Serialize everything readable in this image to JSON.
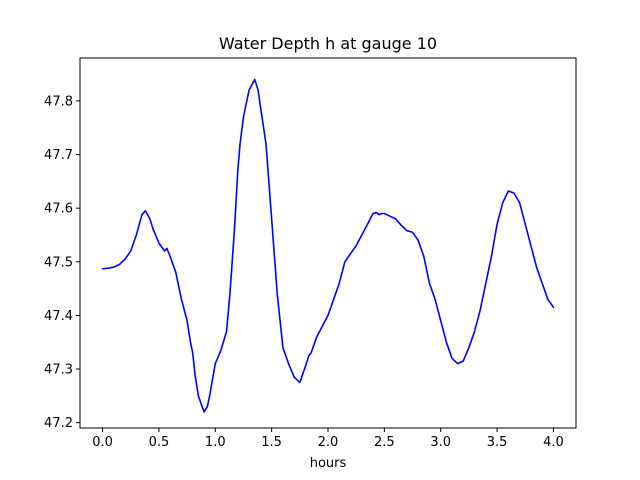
{
  "chart_data": {
    "type": "line",
    "title": "Water Depth h at gauge 10",
    "xlabel": "hours",
    "ylabel": "",
    "xlim": [
      -0.2,
      4.2
    ],
    "ylim": [
      47.19,
      47.88
    ],
    "xticks": [
      0.0,
      0.5,
      1.0,
      1.5,
      2.0,
      2.5,
      3.0,
      3.5,
      4.0
    ],
    "xtick_labels": [
      "0.0",
      "0.5",
      "1.0",
      "1.5",
      "2.0",
      "2.5",
      "3.0",
      "3.5",
      "4.0"
    ],
    "yticks": [
      47.2,
      47.3,
      47.4,
      47.5,
      47.6,
      47.7,
      47.8
    ],
    "ytick_labels": [
      "47.2",
      "47.3",
      "47.4",
      "47.5",
      "47.6",
      "47.7",
      "47.8"
    ],
    "grid": false,
    "legend": "none",
    "series": [
      {
        "color": "#0000ff",
        "x": [
          0.0,
          0.05,
          0.1,
          0.15,
          0.2,
          0.25,
          0.3,
          0.35,
          0.38,
          0.42,
          0.45,
          0.5,
          0.55,
          0.57,
          0.6,
          0.65,
          0.7,
          0.75,
          0.78,
          0.8,
          0.82,
          0.85,
          0.9,
          0.93,
          0.95,
          1.0,
          1.05,
          1.1,
          1.13,
          1.17,
          1.2,
          1.22,
          1.25,
          1.3,
          1.35,
          1.38,
          1.4,
          1.45,
          1.5,
          1.55,
          1.6,
          1.65,
          1.7,
          1.75,
          1.8,
          1.83,
          1.85,
          1.9,
          1.95,
          2.0,
          2.05,
          2.1,
          2.15,
          2.2,
          2.25,
          2.3,
          2.35,
          2.4,
          2.43,
          2.45,
          2.48,
          2.5,
          2.55,
          2.6,
          2.65,
          2.7,
          2.75,
          2.8,
          2.85,
          2.9,
          2.95,
          3.0,
          3.05,
          3.1,
          3.15,
          3.2,
          3.25,
          3.3,
          3.35,
          3.4,
          3.45,
          3.5,
          3.55,
          3.6,
          3.65,
          3.7,
          3.75,
          3.8,
          3.85,
          3.9,
          3.95,
          4.0
        ],
        "y": [
          47.487,
          47.488,
          47.49,
          47.495,
          47.505,
          47.52,
          47.55,
          47.588,
          47.595,
          47.58,
          47.56,
          47.535,
          47.52,
          47.525,
          47.51,
          47.48,
          47.43,
          47.39,
          47.35,
          47.33,
          47.29,
          47.25,
          47.22,
          47.23,
          47.25,
          47.31,
          47.335,
          47.37,
          47.44,
          47.56,
          47.67,
          47.72,
          47.77,
          47.82,
          47.84,
          47.82,
          47.79,
          47.72,
          47.58,
          47.44,
          47.34,
          47.31,
          47.285,
          47.275,
          47.305,
          47.325,
          47.33,
          47.36,
          47.38,
          47.4,
          47.43,
          47.46,
          47.5,
          47.515,
          47.53,
          47.55,
          47.57,
          47.59,
          47.592,
          47.588,
          47.59,
          47.59,
          47.585,
          47.58,
          47.568,
          47.558,
          47.555,
          47.54,
          47.51,
          47.46,
          47.43,
          47.39,
          47.35,
          47.32,
          47.31,
          47.315,
          47.34,
          47.37,
          47.41,
          47.46,
          47.51,
          47.57,
          47.61,
          47.632,
          47.628,
          47.61,
          47.57,
          47.53,
          47.49,
          47.46,
          47.43,
          47.415
        ]
      }
    ]
  }
}
